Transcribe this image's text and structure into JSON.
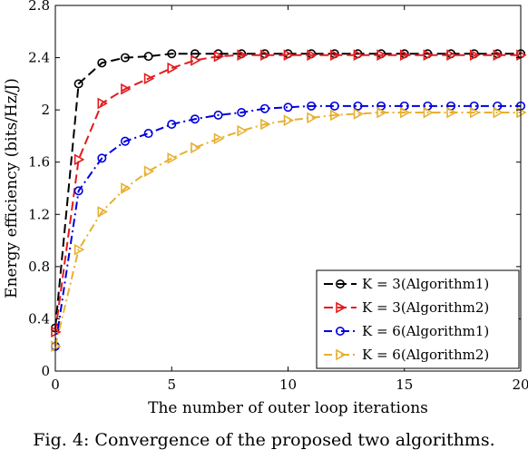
{
  "caption": "Fig. 4: Convergence of the proposed two algorithms.",
  "chart_data": {
    "type": "line",
    "xlabel": "The number of outer loop iterations",
    "ylabel": "Energy efficiency (bits/Hz/J)",
    "xlim": [
      0,
      20
    ],
    "ylim": [
      0,
      2.8
    ],
    "xticks": [
      0,
      5,
      10,
      15,
      20
    ],
    "yticks": [
      0,
      0.4,
      0.8,
      1.2,
      1.6,
      2,
      2.4,
      2.8
    ],
    "ytick_labels": [
      "0",
      "0.4",
      "0.8",
      "1.2",
      "1.6",
      "2",
      "2.4",
      "2.8"
    ],
    "grid": false,
    "legend_position": "bottom-right",
    "x": [
      0,
      1,
      2,
      3,
      4,
      5,
      6,
      7,
      8,
      9,
      10,
      11,
      12,
      13,
      14,
      15,
      16,
      17,
      18,
      19,
      20
    ],
    "series": [
      {
        "name": "K = 3(Algorithm1)",
        "color": "#000000",
        "line_style": "dashed",
        "marker": "circle",
        "values": [
          0.33,
          2.2,
          2.36,
          2.4,
          2.41,
          2.43,
          2.43,
          2.43,
          2.43,
          2.43,
          2.43,
          2.43,
          2.43,
          2.43,
          2.43,
          2.43,
          2.43,
          2.43,
          2.43,
          2.43,
          2.43
        ]
      },
      {
        "name": "K = 3(Algorithm2)",
        "color": "#e41a1c",
        "line_style": "dashed",
        "marker": "triangle-right",
        "values": [
          0.3,
          1.62,
          2.05,
          2.16,
          2.24,
          2.32,
          2.38,
          2.41,
          2.42,
          2.42,
          2.42,
          2.42,
          2.42,
          2.42,
          2.42,
          2.42,
          2.42,
          2.42,
          2.42,
          2.42,
          2.42
        ]
      },
      {
        "name": "K = 6(Algorithm1)",
        "color": "#0000dd",
        "line_style": "dashdot",
        "marker": "circle",
        "values": [
          0.19,
          1.38,
          1.63,
          1.76,
          1.82,
          1.89,
          1.93,
          1.96,
          1.98,
          2.01,
          2.02,
          2.03,
          2.03,
          2.03,
          2.03,
          2.03,
          2.03,
          2.03,
          2.03,
          2.03,
          2.03
        ]
      },
      {
        "name": "K = 6(Algorithm2)",
        "color": "#e8b030",
        "line_style": "dashdot",
        "marker": "triangle-right",
        "values": [
          0.19,
          0.93,
          1.22,
          1.4,
          1.53,
          1.63,
          1.71,
          1.78,
          1.84,
          1.89,
          1.92,
          1.94,
          1.96,
          1.97,
          1.98,
          1.98,
          1.98,
          1.98,
          1.98,
          1.98,
          1.98
        ]
      }
    ]
  }
}
